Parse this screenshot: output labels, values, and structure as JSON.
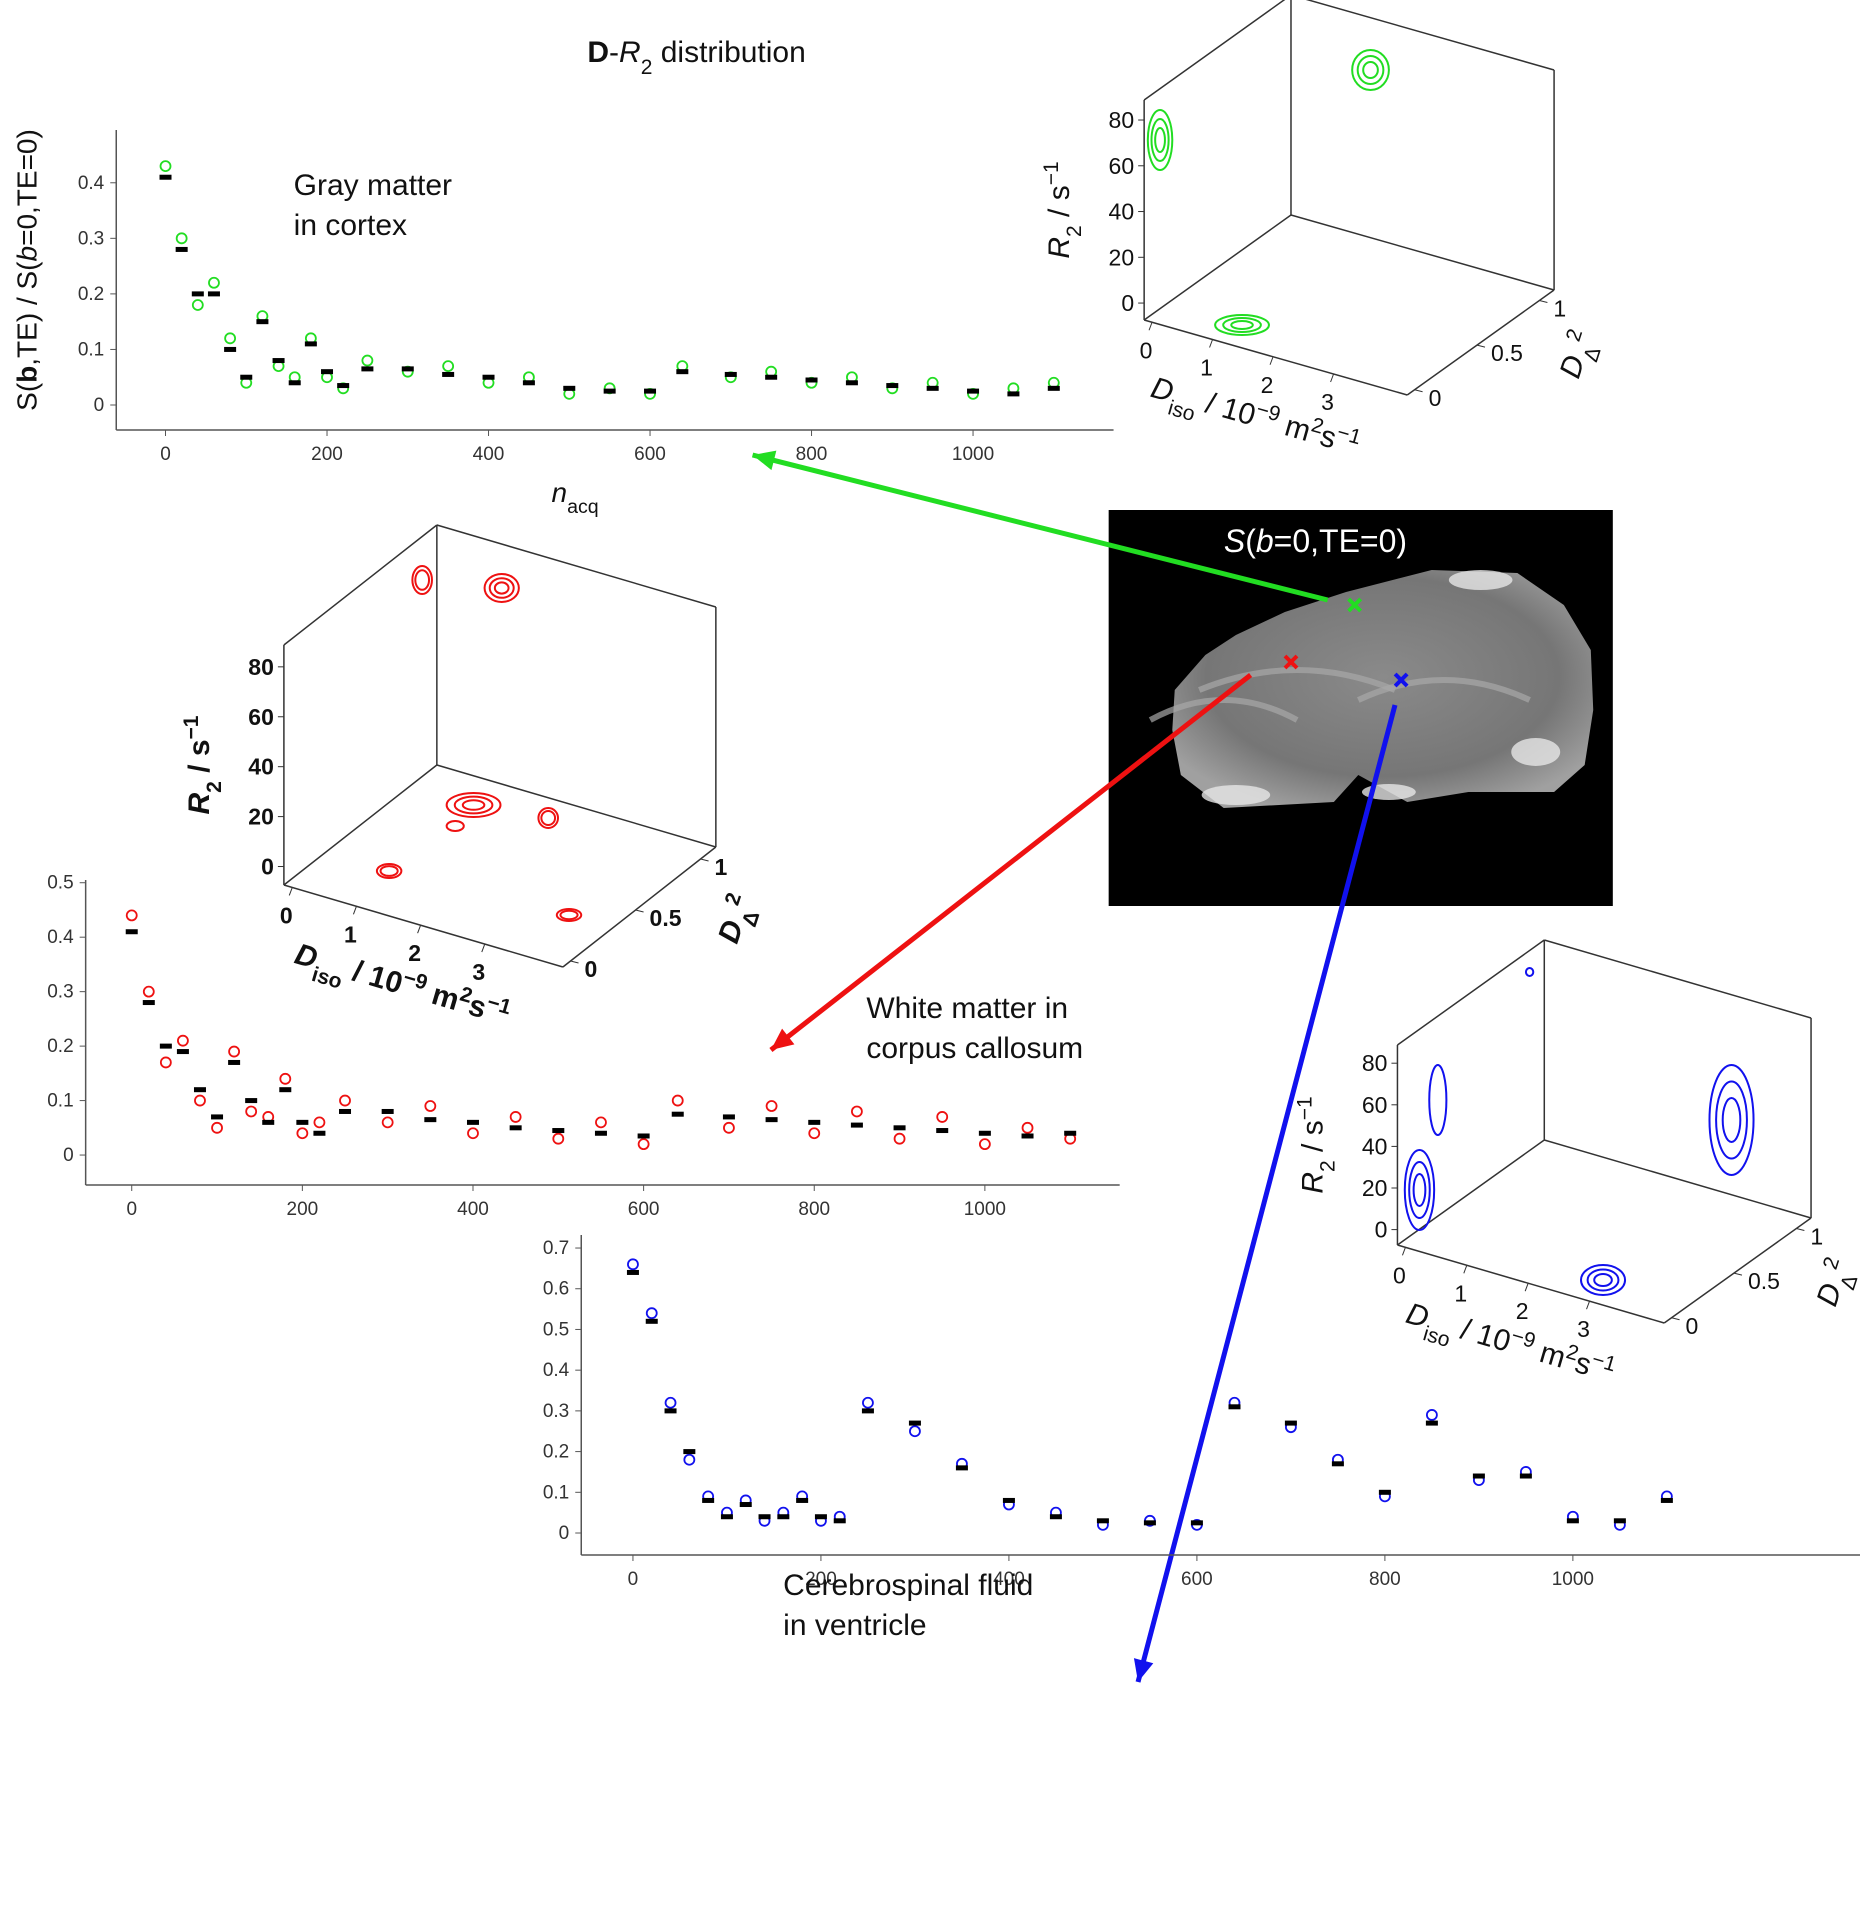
{
  "title": [
    "D",
    "-",
    "R",
    "2",
    " distribution"
  ],
  "image": {
    "title": [
      "S",
      "(",
      "b",
      "=0,TE=0)"
    ]
  },
  "distributions": [
    {
      "color": "#22dd22",
      "z_ticks": [
        0,
        20,
        40,
        60,
        80
      ],
      "x_ticks": [
        0,
        1,
        2,
        3
      ],
      "y_ticks": [
        0,
        0.5,
        1
      ],
      "z_label": [
        "R",
        "2",
        " / s",
        "−1"
      ],
      "x_label": [
        "D",
        "iso",
        " / 10",
        "−9",
        " m",
        "2",
        "s",
        "−1"
      ],
      "y_label": [
        "D",
        "Δ",
        "2"
      ]
    },
    {
      "color": "#ee1111",
      "z_ticks": [
        0,
        20,
        40,
        60,
        80
      ],
      "x_ticks": [
        0,
        1,
        2,
        3
      ],
      "y_ticks": [
        0,
        0.5,
        1
      ],
      "z_label": [
        "R",
        "2",
        " / s",
        "−1"
      ],
      "x_label": [
        "D",
        "iso",
        " / 10",
        "−9",
        " m",
        "2",
        "s",
        "−1"
      ],
      "y_label": [
        "D",
        "Δ",
        "2"
      ]
    },
    {
      "color": "#1111ee",
      "z_ticks": [
        0,
        20,
        40,
        60,
        80
      ],
      "x_ticks": [
        0,
        1,
        2,
        3
      ],
      "y_ticks": [
        0,
        0.5,
        1
      ],
      "z_label": [
        "R",
        "2",
        " / s",
        "−1"
      ],
      "x_label": [
        "D",
        "iso",
        " / 10",
        "−9",
        " m",
        "2",
        "s",
        "−1"
      ],
      "y_label": [
        "D",
        "Δ",
        "2"
      ]
    }
  ],
  "chart_data": [
    {
      "type": "scatter",
      "annotation": [
        "Gray matter",
        "in cortex"
      ],
      "x_label": [
        "n",
        "acq"
      ],
      "y_label": [
        "S(",
        "b",
        ",TE) / S(",
        "b",
        "=0,TE=0)"
      ],
      "xlim": [
        -61,
        1174
      ],
      "xticks": [
        0,
        200,
        400,
        600,
        800,
        1000
      ],
      "ylim": [
        -0.045,
        0.495
      ],
      "yticks": [
        0,
        0.1,
        0.2,
        0.3,
        0.4
      ],
      "x": [
        0,
        20,
        40,
        60,
        80,
        100,
        120,
        140,
        160,
        180,
        200,
        220,
        250,
        300,
        350,
        400,
        450,
        500,
        550,
        600,
        640,
        700,
        750,
        800,
        850,
        900,
        950,
        1000,
        1050,
        1100
      ],
      "series": [
        {
          "color": "#22dd22",
          "marker": "open-circle",
          "values": [
            0.43,
            0.3,
            0.18,
            0.22,
            0.12,
            0.04,
            0.16,
            0.07,
            0.05,
            0.12,
            0.05,
            0.03,
            0.08,
            0.06,
            0.07,
            0.04,
            0.05,
            0.02,
            0.03,
            0.02,
            0.07,
            0.05,
            0.06,
            0.04,
            0.05,
            0.03,
            0.04,
            0.02,
            0.03,
            0.04
          ]
        },
        {
          "color": "#000000",
          "marker": "dash",
          "values": [
            0.41,
            0.28,
            0.2,
            0.2,
            0.1,
            0.05,
            0.15,
            0.08,
            0.04,
            0.11,
            0.06,
            0.035,
            0.065,
            0.065,
            0.055,
            0.05,
            0.04,
            0.03,
            0.025,
            0.025,
            0.06,
            0.055,
            0.05,
            0.045,
            0.04,
            0.035,
            0.03,
            0.025,
            0.02,
            0.03
          ]
        }
      ]
    },
    {
      "type": "scatter",
      "annotation": [
        "White matter in",
        "corpus callosum"
      ],
      "xlim": [
        -54,
        1158
      ],
      "xticks": [
        0,
        200,
        400,
        600,
        800,
        1000
      ],
      "ylim": [
        -0.055,
        0.505
      ],
      "yticks": [
        0,
        0.1,
        0.2,
        0.3,
        0.4,
        0.5
      ],
      "x": [
        0,
        20,
        40,
        60,
        80,
        100,
        120,
        140,
        160,
        180,
        200,
        220,
        250,
        300,
        350,
        400,
        450,
        500,
        550,
        600,
        640,
        700,
        750,
        800,
        850,
        900,
        950,
        1000,
        1050,
        1100
      ],
      "series": [
        {
          "color": "#ee1111",
          "marker": "open-circle",
          "values": [
            0.44,
            0.3,
            0.17,
            0.21,
            0.1,
            0.05,
            0.19,
            0.08,
            0.07,
            0.14,
            0.04,
            0.06,
            0.1,
            0.06,
            0.09,
            0.04,
            0.07,
            0.03,
            0.06,
            0.02,
            0.1,
            0.05,
            0.09,
            0.04,
            0.08,
            0.03,
            0.07,
            0.02,
            0.05,
            0.03
          ]
        },
        {
          "color": "#000000",
          "marker": "dash",
          "values": [
            0.41,
            0.28,
            0.2,
            0.19,
            0.12,
            0.07,
            0.17,
            0.1,
            0.06,
            0.12,
            0.06,
            0.04,
            0.08,
            0.08,
            0.065,
            0.06,
            0.05,
            0.045,
            0.04,
            0.035,
            0.075,
            0.07,
            0.065,
            0.06,
            0.055,
            0.05,
            0.045,
            0.04,
            0.035,
            0.04
          ]
        }
      ]
    },
    {
      "type": "scatter",
      "annotation": [
        "Cerebrospinal fluid",
        "in ventricle"
      ],
      "xlim": [
        -55,
        1325
      ],
      "xticks": [
        0,
        200,
        400,
        600,
        800,
        1000
      ],
      "ylim": [
        -0.054,
        0.732
      ],
      "yticks": [
        0,
        0.1,
        0.2,
        0.3,
        0.4,
        0.5,
        0.6,
        0.7
      ],
      "x": [
        0,
        20,
        40,
        60,
        80,
        100,
        120,
        140,
        160,
        180,
        200,
        220,
        250,
        300,
        350,
        400,
        450,
        500,
        550,
        600,
        640,
        700,
        750,
        800,
        850,
        900,
        950,
        1000,
        1050,
        1100
      ],
      "series": [
        {
          "color": "#1111ee",
          "marker": "open-circle",
          "values": [
            0.66,
            0.54,
            0.32,
            0.18,
            0.09,
            0.05,
            0.08,
            0.03,
            0.05,
            0.09,
            0.03,
            0.04,
            0.32,
            0.25,
            0.17,
            0.07,
            0.05,
            0.02,
            0.03,
            0.02,
            0.32,
            0.26,
            0.18,
            0.09,
            0.29,
            0.13,
            0.15,
            0.04,
            0.02,
            0.09
          ]
        },
        {
          "color": "#000000",
          "marker": "dash",
          "values": [
            0.64,
            0.52,
            0.3,
            0.2,
            0.08,
            0.04,
            0.07,
            0.04,
            0.04,
            0.08,
            0.04,
            0.03,
            0.3,
            0.27,
            0.16,
            0.08,
            0.04,
            0.03,
            0.025,
            0.025,
            0.31,
            0.27,
            0.17,
            0.1,
            0.27,
            0.14,
            0.14,
            0.03,
            0.03,
            0.08
          ]
        }
      ]
    }
  ]
}
